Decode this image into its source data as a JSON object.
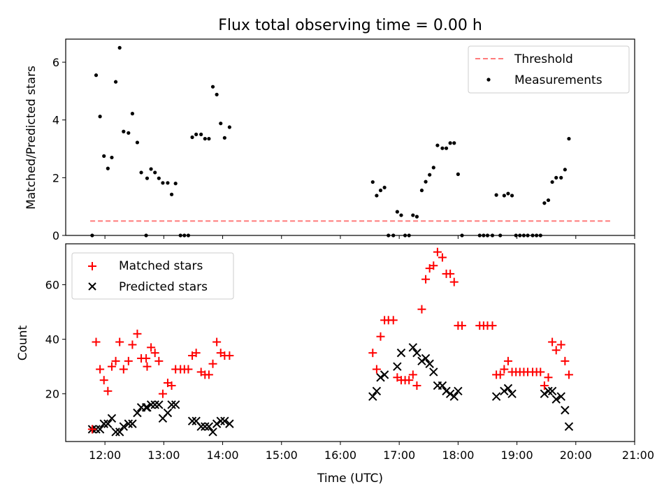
{
  "chart_data": [
    {
      "type": "scatter",
      "title": "Flux total observing time = 0.00 h",
      "ylabel": "Matched/Predicted stars",
      "xlabel": "",
      "xlim": [
        "11:20",
        "21:00"
      ],
      "ylim": [
        0,
        6.8
      ],
      "yticks": [
        "0",
        "2",
        "4",
        "6"
      ],
      "legend_position": "top-right",
      "grid": false,
      "threshold": {
        "name": "Threshold",
        "value": 0.5,
        "x_start": "11:45",
        "x_end": "20:35",
        "color": "#ff7b7b",
        "style": "dashed"
      },
      "series": [
        {
          "name": "Measurements",
          "color": "#000000",
          "marker": "dot",
          "points": [
            [
              "11:47",
              0.0
            ],
            [
              "11:51",
              5.55
            ],
            [
              "11:55",
              4.12
            ],
            [
              "11:59",
              2.75
            ],
            [
              "12:03",
              2.32
            ],
            [
              "12:07",
              2.7
            ],
            [
              "12:11",
              5.32
            ],
            [
              "12:15",
              6.5
            ],
            [
              "12:19",
              3.6
            ],
            [
              "12:24",
              3.55
            ],
            [
              "12:28",
              4.22
            ],
            [
              "12:33",
              3.22
            ],
            [
              "12:37",
              2.18
            ],
            [
              "12:42",
              0.0
            ],
            [
              "12:43",
              1.98
            ],
            [
              "12:47",
              2.3
            ],
            [
              "12:51",
              2.18
            ],
            [
              "12:55",
              1.98
            ],
            [
              "12:59",
              1.82
            ],
            [
              "13:04",
              1.82
            ],
            [
              "13:08",
              1.42
            ],
            [
              "13:12",
              1.8
            ],
            [
              "13:17",
              0.0
            ],
            [
              "13:21",
              0.0
            ],
            [
              "13:25",
              0.0
            ],
            [
              "13:29",
              3.4
            ],
            [
              "13:33",
              3.5
            ],
            [
              "13:38",
              3.5
            ],
            [
              "13:42",
              3.35
            ],
            [
              "13:46",
              3.35
            ],
            [
              "13:50",
              5.15
            ],
            [
              "13:54",
              4.88
            ],
            [
              "13:58",
              3.88
            ],
            [
              "14:02",
              3.38
            ],
            [
              "14:07",
              3.75
            ],
            [
              "16:33",
              1.85
            ],
            [
              "16:37",
              1.38
            ],
            [
              "16:41",
              1.56
            ],
            [
              "16:45",
              1.66
            ],
            [
              "16:49",
              0.0
            ],
            [
              "16:54",
              0.0
            ],
            [
              "16:58",
              0.82
            ],
            [
              "17:02",
              0.7
            ],
            [
              "17:06",
              0.0
            ],
            [
              "17:10",
              0.0
            ],
            [
              "17:14",
              0.7
            ],
            [
              "17:18",
              0.65
            ],
            [
              "17:23",
              1.56
            ],
            [
              "17:27",
              1.86
            ],
            [
              "17:31",
              2.1
            ],
            [
              "17:35",
              2.35
            ],
            [
              "17:39",
              3.12
            ],
            [
              "17:44",
              3.02
            ],
            [
              "17:48",
              3.02
            ],
            [
              "17:52",
              3.2
            ],
            [
              "17:56",
              3.2
            ],
            [
              "18:00",
              2.12
            ],
            [
              "18:04",
              0.0
            ],
            [
              "18:22",
              0.0
            ],
            [
              "18:26",
              0.0
            ],
            [
              "18:30",
              0.0
            ],
            [
              "18:35",
              0.0
            ],
            [
              "18:39",
              1.4
            ],
            [
              "18:43",
              0.0
            ],
            [
              "18:47",
              1.38
            ],
            [
              "18:51",
              1.45
            ],
            [
              "18:55",
              1.38
            ],
            [
              "18:59",
              0.0
            ],
            [
              "19:03",
              0.0
            ],
            [
              "19:07",
              0.0
            ],
            [
              "19:11",
              0.0
            ],
            [
              "19:16",
              0.0
            ],
            [
              "19:20",
              0.0
            ],
            [
              "19:24",
              0.0
            ],
            [
              "19:28",
              1.12
            ],
            [
              "19:32",
              1.22
            ],
            [
              "19:36",
              1.85
            ],
            [
              "19:40",
              2.0
            ],
            [
              "19:45",
              2.0
            ],
            [
              "19:49",
              2.28
            ],
            [
              "19:53",
              3.35
            ]
          ]
        }
      ]
    },
    {
      "type": "scatter",
      "title": "",
      "xlabel": "Time (UTC)",
      "ylabel": "Count",
      "xlim": [
        "11:20",
        "21:00"
      ],
      "ylim": [
        2.5,
        75
      ],
      "xticks": [
        "12:00",
        "13:00",
        "14:00",
        "15:00",
        "16:00",
        "17:00",
        "18:00",
        "19:00",
        "20:00",
        "21:00"
      ],
      "yticks": [
        "20",
        "40",
        "60"
      ],
      "legend_position": "top-left",
      "grid": false,
      "series": [
        {
          "name": "Matched stars",
          "color": "#ff0000",
          "marker": "plus",
          "points": [
            [
              "11:47",
              7
            ],
            [
              "11:51",
              39
            ],
            [
              "11:55",
              29
            ],
            [
              "11:59",
              25
            ],
            [
              "12:03",
              21
            ],
            [
              "12:07",
              30
            ],
            [
              "12:11",
              32
            ],
            [
              "12:15",
              39
            ],
            [
              "12:19",
              29
            ],
            [
              "12:24",
              32
            ],
            [
              "12:28",
              38
            ],
            [
              "12:33",
              42
            ],
            [
              "12:37",
              33
            ],
            [
              "12:42",
              33
            ],
            [
              "12:43",
              30
            ],
            [
              "12:47",
              37
            ],
            [
              "12:51",
              35
            ],
            [
              "12:55",
              32
            ],
            [
              "12:59",
              20
            ],
            [
              "13:04",
              24
            ],
            [
              "13:08",
              23
            ],
            [
              "13:12",
              29
            ],
            [
              "13:17",
              29
            ],
            [
              "13:21",
              29
            ],
            [
              "13:25",
              29
            ],
            [
              "13:29",
              34
            ],
            [
              "13:33",
              35
            ],
            [
              "13:38",
              28
            ],
            [
              "13:42",
              27
            ],
            [
              "13:46",
              27
            ],
            [
              "13:50",
              31
            ],
            [
              "13:54",
              39
            ],
            [
              "13:58",
              35
            ],
            [
              "14:02",
              34
            ],
            [
              "14:07",
              34
            ],
            [
              "16:33",
              35
            ],
            [
              "16:37",
              29
            ],
            [
              "16:41",
              41
            ],
            [
              "16:45",
              47
            ],
            [
              "16:49",
              47
            ],
            [
              "16:54",
              47
            ],
            [
              "16:58",
              26
            ],
            [
              "17:02",
              25
            ],
            [
              "17:06",
              25
            ],
            [
              "17:10",
              25
            ],
            [
              "17:14",
              27
            ],
            [
              "17:18",
              23
            ],
            [
              "17:23",
              51
            ],
            [
              "17:27",
              62
            ],
            [
              "17:31",
              66
            ],
            [
              "17:35",
              67
            ],
            [
              "17:39",
              72
            ],
            [
              "17:44",
              70
            ],
            [
              "17:48",
              64
            ],
            [
              "17:52",
              64
            ],
            [
              "17:56",
              61
            ],
            [
              "18:00",
              45
            ],
            [
              "18:04",
              45
            ],
            [
              "18:22",
              45
            ],
            [
              "18:26",
              45
            ],
            [
              "18:30",
              45
            ],
            [
              "18:35",
              45
            ],
            [
              "18:39",
              27
            ],
            [
              "18:43",
              27
            ],
            [
              "18:47",
              29
            ],
            [
              "18:51",
              32
            ],
            [
              "18:55",
              28
            ],
            [
              "18:59",
              28
            ],
            [
              "19:03",
              28
            ],
            [
              "19:07",
              28
            ],
            [
              "19:11",
              28
            ],
            [
              "19:16",
              28
            ],
            [
              "19:20",
              28
            ],
            [
              "19:24",
              28
            ],
            [
              "19:28",
              23
            ],
            [
              "19:32",
              26
            ],
            [
              "19:36",
              39
            ],
            [
              "19:40",
              36
            ],
            [
              "19:45",
              38
            ],
            [
              "19:49",
              32
            ],
            [
              "19:53",
              27
            ]
          ]
        },
        {
          "name": "Predicted stars",
          "color": "#000000",
          "marker": "x",
          "points": [
            [
              "11:47",
              7
            ],
            [
              "11:51",
              7
            ],
            [
              "11:55",
              7
            ],
            [
              "11:59",
              9
            ],
            [
              "12:03",
              9
            ],
            [
              "12:07",
              11
            ],
            [
              "12:11",
              6
            ],
            [
              "12:15",
              6
            ],
            [
              "12:19",
              8
            ],
            [
              "12:24",
              9
            ],
            [
              "12:28",
              9
            ],
            [
              "12:33",
              13
            ],
            [
              "12:37",
              15
            ],
            [
              "12:42",
              15
            ],
            [
              "12:43",
              15
            ],
            [
              "12:47",
              16
            ],
            [
              "12:51",
              16
            ],
            [
              "12:55",
              16
            ],
            [
              "12:59",
              11
            ],
            [
              "13:04",
              13
            ],
            [
              "13:08",
              16
            ],
            [
              "13:12",
              16
            ],
            [
              "13:29",
              10
            ],
            [
              "13:33",
              10
            ],
            [
              "13:38",
              8
            ],
            [
              "13:42",
              8
            ],
            [
              "13:46",
              8
            ],
            [
              "13:50",
              6
            ],
            [
              "13:54",
              9
            ],
            [
              "13:58",
              10
            ],
            [
              "14:02",
              10
            ],
            [
              "14:07",
              9
            ],
            [
              "16:33",
              19
            ],
            [
              "16:37",
              21
            ],
            [
              "16:41",
              26
            ],
            [
              "16:45",
              27
            ],
            [
              "16:58",
              30
            ],
            [
              "17:02",
              35
            ],
            [
              "17:14",
              37
            ],
            [
              "17:18",
              35
            ],
            [
              "17:23",
              32
            ],
            [
              "17:27",
              33
            ],
            [
              "17:31",
              31
            ],
            [
              "17:35",
              28
            ],
            [
              "17:39",
              23
            ],
            [
              "17:44",
              23
            ],
            [
              "17:48",
              21
            ],
            [
              "17:52",
              20
            ],
            [
              "17:56",
              19
            ],
            [
              "18:00",
              21
            ],
            [
              "18:39",
              19
            ],
            [
              "18:47",
              21
            ],
            [
              "18:51",
              22
            ],
            [
              "18:55",
              20
            ],
            [
              "19:28",
              20
            ],
            [
              "19:32",
              21
            ],
            [
              "19:36",
              21
            ],
            [
              "19:40",
              18
            ],
            [
              "19:45",
              19
            ],
            [
              "19:49",
              14
            ],
            [
              "19:53",
              8
            ]
          ]
        }
      ]
    }
  ]
}
